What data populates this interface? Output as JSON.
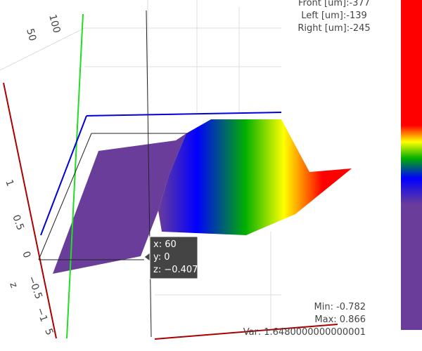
{
  "info": {
    "front": "Front [um]:-377",
    "left": "Left [um]:-139",
    "right": "Right [um]:-245"
  },
  "axis_labels": {
    "y_ticks": [
      "100",
      "50"
    ],
    "z_ticks": [
      "1",
      "0.5",
      "0",
      "−0.5",
      "−1"
    ],
    "z_title": "z",
    "x_tick": "5"
  },
  "hover": [
    "x: 60",
    "y: 0",
    "z: −0.407"
  ],
  "stats": [
    "Min: -0.782",
    "Max: 0.866",
    "Var: 1.6480000000000001"
  ]
}
